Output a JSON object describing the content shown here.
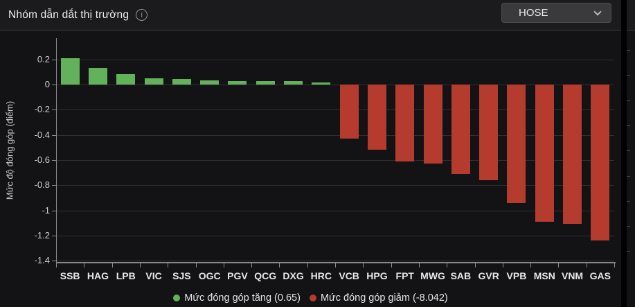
{
  "header": {
    "title": "Nhóm dẫn dắt thị trường",
    "exchange_selector": {
      "value": "HOSE"
    }
  },
  "colors": {
    "up": "#63b25b",
    "down": "#b43b2e",
    "panel_bg": "#131315",
    "header_bg": "#1b1b1d",
    "grid": "#303032",
    "axis": "#8a8a8c"
  },
  "chart_data": {
    "type": "bar",
    "title": "Nhóm dẫn dắt thị trường",
    "ylabel": "Mức độ đóng góp (điểm)",
    "xlabel": "",
    "categories": [
      "SSB",
      "HAG",
      "LPB",
      "VIC",
      "SJS",
      "OGC",
      "PGV",
      "QCG",
      "DXG",
      "HRC",
      "VCB",
      "HPG",
      "FPT",
      "MWG",
      "SAB",
      "GVR",
      "VPB",
      "MSN",
      "VNM",
      "GAS"
    ],
    "values": [
      0.21,
      0.13,
      0.08,
      0.05,
      0.045,
      0.035,
      0.03,
      0.028,
      0.025,
      0.017,
      -0.43,
      -0.52,
      -0.61,
      -0.63,
      -0.71,
      -0.76,
      -0.94,
      -1.09,
      -1.11,
      -1.242
    ],
    "ylim": [
      -1.42,
      0.37
    ],
    "yticks": [
      0.2,
      0,
      -0.2,
      -0.4,
      -0.6,
      -0.8,
      -1,
      -1.2,
      -1.4
    ],
    "ytick_labels": [
      "0.2",
      "0",
      "-0.2",
      "-0.4",
      "-0.6",
      "-0.8",
      "-1",
      "-1.2",
      "-1.4"
    ],
    "grid": true,
    "legend_position": "bottom",
    "up_total": 0.65,
    "down_total": -8.042,
    "legend": [
      {
        "label": "Mức đóng góp tăng (0.65)",
        "color": "#63b25b"
      },
      {
        "label": "Mức đóng góp giảm (-8.042)",
        "color": "#b43b2e"
      }
    ]
  }
}
